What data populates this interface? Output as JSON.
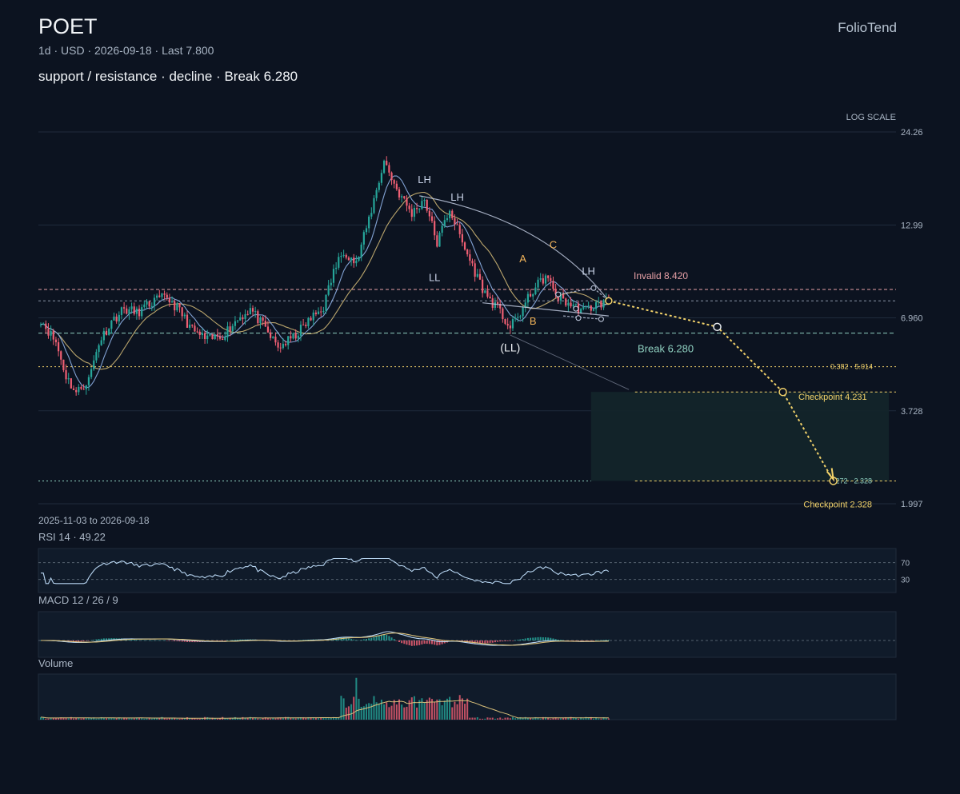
{
  "header": {
    "symbol": "POET",
    "meta": "1d · USD · 2026-09-18 · Last 7.800",
    "headline": "support / resistance · decline · Break 6.280",
    "brand": "FolioTend"
  },
  "colors": {
    "background": "#0c1320",
    "grid": "#1f2b3b",
    "up": "#26a69a",
    "down": "#ef5f73",
    "ma_fast": "#8fb3e8",
    "ma_slow": "#d9c07a",
    "projection": "#f2d26a",
    "invalid": "#e7a0a6",
    "break": "#8fd0c0",
    "pattern": "#c9d3e8",
    "wave": "#f2b45a"
  },
  "chart_data": {
    "type": "candlestick",
    "scale": "log",
    "scale_label": "LOG SCALE",
    "date_range": "2025-11-03 to 2026-09-18",
    "y_ticks": [
      24.26,
      12.99,
      6.96,
      3.728,
      1.997
    ],
    "y_tick_labels": [
      "24.26",
      "12.99",
      "6.960",
      "3.728",
      "1.997"
    ],
    "ylim": [
      1.997,
      24.26
    ],
    "levels": {
      "invalid": {
        "value": 8.42,
        "label": "Invalid 8.420"
      },
      "last": {
        "value": 7.8
      },
      "break": {
        "value": 6.28,
        "label": "Break 6.280"
      },
      "fib_382": {
        "value": 5.014,
        "label": "0.382 · 5.014"
      },
      "checkpoint_1": {
        "value": 4.231,
        "label": "Checkpoint 4.231"
      },
      "fib_1272": {
        "value": 2.328,
        "label": "1.272 · 2.328"
      },
      "checkpoint_2": {
        "value": 2.328,
        "label": "Checkpoint 2.328"
      }
    },
    "anchors": [
      {
        "i": 0,
        "p": 6.9
      },
      {
        "i": 6,
        "p": 5.9
      },
      {
        "i": 10,
        "p": 4.7
      },
      {
        "i": 14,
        "p": 4.2
      },
      {
        "i": 19,
        "p": 4.6
      },
      {
        "i": 23,
        "p": 5.9
      },
      {
        "i": 28,
        "p": 6.8
      },
      {
        "i": 33,
        "p": 7.4
      },
      {
        "i": 38,
        "p": 7.2
      },
      {
        "i": 45,
        "p": 7.8
      },
      {
        "i": 50,
        "p": 8.0
      },
      {
        "i": 55,
        "p": 7.3
      },
      {
        "i": 60,
        "p": 6.4
      },
      {
        "i": 66,
        "p": 6.0
      },
      {
        "i": 72,
        "p": 6.2
      },
      {
        "i": 78,
        "p": 6.9
      },
      {
        "i": 83,
        "p": 7.4
      },
      {
        "i": 88,
        "p": 6.6
      },
      {
        "i": 94,
        "p": 5.7
      },
      {
        "i": 100,
        "p": 6.1
      },
      {
        "i": 106,
        "p": 6.8
      },
      {
        "i": 112,
        "p": 7.5
      },
      {
        "i": 116,
        "p": 9.5
      },
      {
        "i": 120,
        "p": 11.0
      },
      {
        "i": 125,
        "p": 10.0
      },
      {
        "i": 130,
        "p": 13.5
      },
      {
        "i": 136,
        "p": 20.0
      },
      {
        "i": 141,
        "p": 16.5
      },
      {
        "i": 147,
        "p": 14.0
      },
      {
        "i": 152,
        "p": 15.5
      },
      {
        "i": 157,
        "p": 11.5
      },
      {
        "i": 162,
        "p": 14.5
      },
      {
        "i": 167,
        "p": 11.5
      },
      {
        "i": 172,
        "p": 9.5
      },
      {
        "i": 176,
        "p": 8.2
      },
      {
        "i": 181,
        "p": 7.4
      },
      {
        "i": 186,
        "p": 6.5
      },
      {
        "i": 190,
        "p": 7.2
      },
      {
        "i": 195,
        "p": 8.4
      },
      {
        "i": 200,
        "p": 9.2
      },
      {
        "i": 205,
        "p": 8.0
      },
      {
        "i": 210,
        "p": 7.6
      },
      {
        "i": 215,
        "p": 7.3
      },
      {
        "i": 220,
        "p": 7.6
      },
      {
        "i": 225,
        "p": 7.8
      }
    ],
    "bars": 226,
    "labels": [
      {
        "text": "LH",
        "i": 152,
        "p": 17.2,
        "kind": "pattern"
      },
      {
        "text": "LH",
        "i": 165,
        "p": 15.3,
        "kind": "pattern"
      },
      {
        "text": "LL",
        "i": 156,
        "p": 8.9,
        "kind": "pattern"
      },
      {
        "text": "(LL)",
        "i": 186,
        "p": 5.55,
        "kind": "pattern-strong"
      },
      {
        "text": "LH",
        "i": 217,
        "p": 9.3,
        "kind": "pattern"
      },
      {
        "text": "A",
        "i": 191,
        "p": 10.1,
        "kind": "wave"
      },
      {
        "text": "B",
        "i": 195,
        "p": 6.65,
        "kind": "wave"
      },
      {
        "text": "C",
        "i": 203,
        "p": 11.1,
        "kind": "wave"
      }
    ],
    "projection": [
      {
        "i": 225,
        "p": 7.8
      },
      {
        "i": 268,
        "p": 6.55
      },
      {
        "i": 294,
        "p": 4.231
      },
      {
        "i": 314,
        "p": 2.328
      }
    ],
    "target_zone": {
      "from_i": 218,
      "to_i": 336,
      "top": 4.231,
      "bottom": 2.328
    },
    "rsi": {
      "label": "RSI 14 · 49.22",
      "value": 49.22,
      "levels": [
        70,
        30
      ],
      "level_labels": [
        "70",
        "30"
      ]
    },
    "macd": {
      "label": "MACD 12 / 26 / 9"
    },
    "volume": {
      "label": "Volume"
    }
  }
}
